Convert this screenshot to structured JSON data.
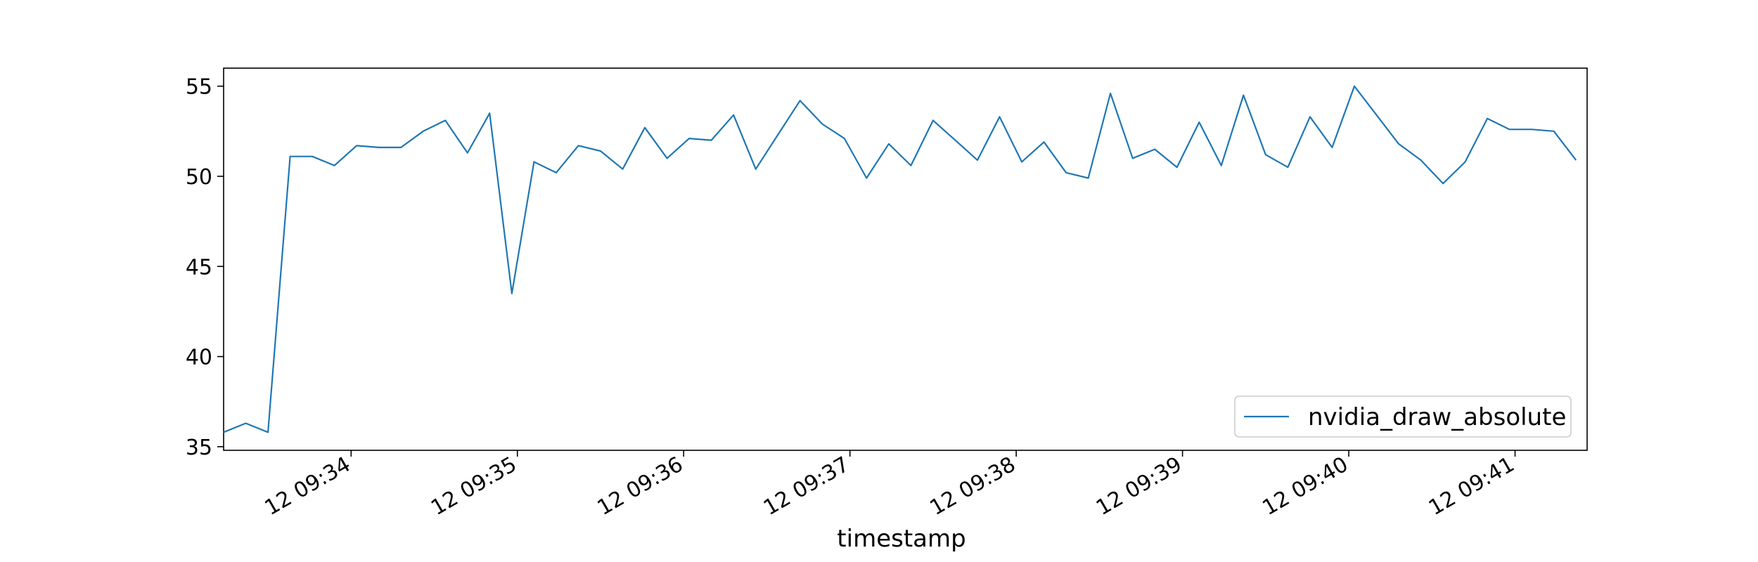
{
  "chart_data": {
    "type": "line",
    "title": "",
    "xlabel": "timestamp",
    "ylabel": "",
    "grid": false,
    "legend_position": "lower-right",
    "x_start": "09:33:14",
    "x_step_seconds": 8,
    "xlim": [
      "09:33:14",
      "09:41:26"
    ],
    "ylim": [
      34.8,
      56.0
    ],
    "x_ticks": [
      "12 09:34",
      "12 09:35",
      "12 09:36",
      "12 09:37",
      "12 09:38",
      "12 09:39",
      "12 09:40",
      "12 09:41"
    ],
    "y_ticks": [
      35,
      40,
      45,
      50,
      55
    ],
    "series": [
      {
        "name": "nvidia_draw_absolute",
        "color": "#1f77b4",
        "values": [
          35.8,
          36.3,
          35.8,
          51.1,
          51.1,
          50.6,
          51.7,
          51.6,
          51.6,
          52.5,
          53.1,
          51.3,
          53.5,
          43.5,
          50.8,
          50.2,
          51.7,
          51.4,
          50.4,
          52.7,
          51.0,
          52.1,
          52.0,
          53.4,
          50.4,
          52.3,
          54.2,
          52.9,
          52.1,
          49.9,
          51.8,
          50.6,
          53.1,
          52.0,
          50.9,
          53.3,
          50.8,
          51.9,
          50.2,
          49.9,
          54.6,
          51.0,
          51.5,
          50.5,
          53.0,
          50.6,
          54.5,
          51.2,
          50.5,
          53.3,
          51.6,
          55.0,
          53.4,
          51.8,
          50.9,
          49.6,
          50.8,
          53.2,
          52.6,
          52.6,
          52.5,
          50.9
        ]
      }
    ]
  }
}
